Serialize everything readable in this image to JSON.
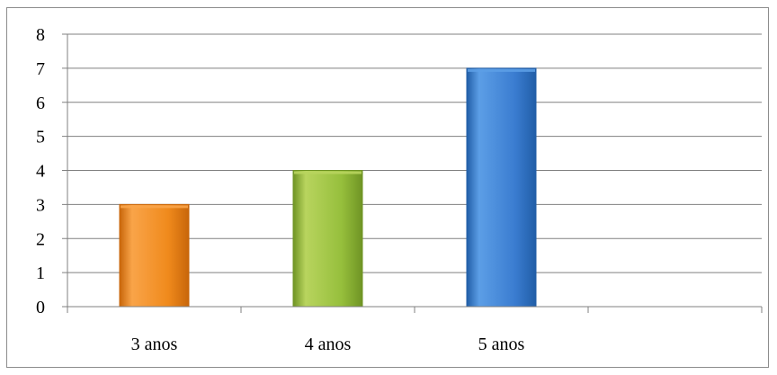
{
  "chart_data": {
    "type": "bar",
    "categories": [
      "3 anos",
      "4 anos",
      "5 anos",
      ""
    ],
    "values": [
      3,
      4,
      7,
      null
    ],
    "ylim": [
      0,
      8
    ],
    "y_ticks": [
      "0",
      "1",
      "2",
      "3",
      "4",
      "5",
      "6",
      "7",
      "8"
    ],
    "grid": true,
    "legend": "none",
    "bar_colors": [
      {
        "light": "#f9a449",
        "mid": "#f08a1c",
        "dark": "#c8660a"
      },
      {
        "light": "#b8d45e",
        "mid": "#96bf3c",
        "dark": "#6f9424"
      },
      {
        "light": "#5c9ee6",
        "mid": "#3a7cd0",
        "dark": "#215ea7"
      }
    ],
    "gridline_color": "#808080",
    "axis_color": "#808080"
  }
}
